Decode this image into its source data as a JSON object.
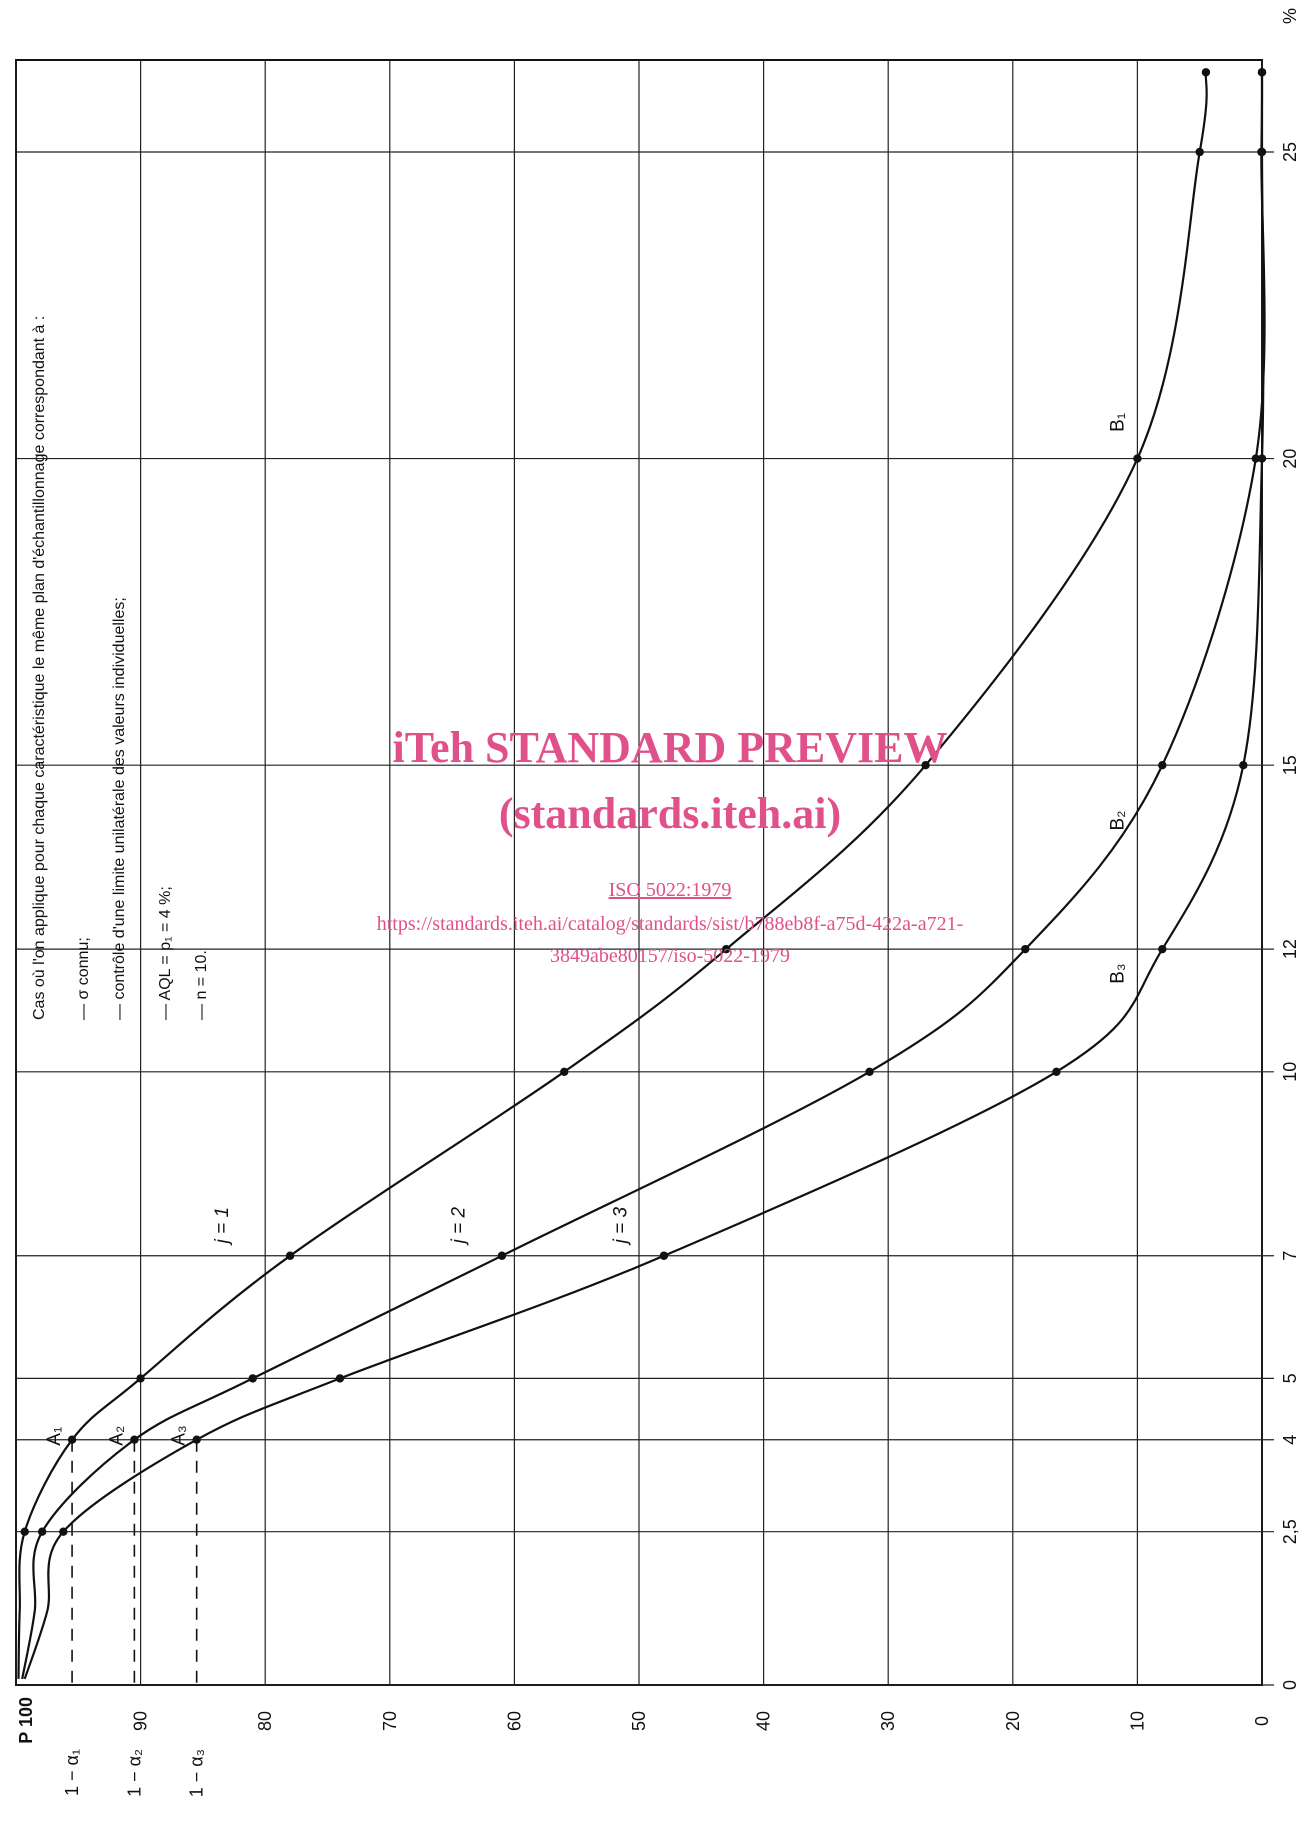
{
  "chart_data": {
    "type": "line",
    "orientation": "rotated-90-clockwise",
    "x_axis": {
      "unit_label": "%",
      "ticks": [
        0,
        2.5,
        4,
        5,
        7,
        10,
        12,
        15,
        20,
        25
      ],
      "tick_labels": [
        "0",
        "2,5",
        "4",
        "5",
        "7",
        "10",
        "12",
        "15",
        "20",
        "25"
      ],
      "range": [
        0,
        26.5
      ]
    },
    "y_axis": {
      "title": "P",
      "ticks": [
        0,
        10,
        20,
        30,
        40,
        50,
        60,
        70,
        80,
        90,
        100
      ],
      "tick_labels": [
        "0",
        "10",
        "20",
        "30",
        "40",
        "50",
        "60",
        "70",
        "80",
        "90",
        "100"
      ],
      "range": [
        0,
        100
      ]
    },
    "alpha_labels": [
      {
        "text": "1 − α₁",
        "value": 95.5
      },
      {
        "text": "1 − α₂",
        "value": 90.5
      },
      {
        "text": "1 − α₃",
        "value": 85.5
      }
    ],
    "series": [
      {
        "label": "j = 1",
        "label_at": [
          7.5,
          83
        ],
        "points": [
          [
            0.1,
            99.8
          ],
          [
            1.2,
            99.7
          ],
          [
            2.5,
            99.3
          ],
          [
            4,
            95.5
          ],
          [
            5,
            90
          ],
          [
            7,
            78
          ],
          [
            10,
            56
          ],
          [
            12,
            43
          ],
          [
            15,
            27
          ],
          [
            20,
            10
          ],
          [
            25,
            5
          ],
          [
            26.3,
            4.5
          ]
        ]
      },
      {
        "label": "j = 2",
        "label_at": [
          7.5,
          64
        ],
        "points": [
          [
            0.1,
            99.5
          ],
          [
            1.2,
            98.5
          ],
          [
            2.5,
            97.9
          ],
          [
            4,
            90.5
          ],
          [
            5,
            81
          ],
          [
            7,
            61
          ],
          [
            10,
            31.5
          ],
          [
            12,
            19
          ],
          [
            15,
            8
          ],
          [
            20,
            0.5
          ],
          [
            25,
            0.05
          ],
          [
            26.3,
            0
          ]
        ]
      },
      {
        "label": "j = 3",
        "label_at": [
          7.5,
          51
        ],
        "points": [
          [
            0.1,
            99.3
          ],
          [
            1.2,
            97.5
          ],
          [
            2.5,
            96.2
          ],
          [
            4,
            85.5
          ],
          [
            5,
            74
          ],
          [
            7,
            48
          ],
          [
            10,
            16.5
          ],
          [
            12,
            8
          ],
          [
            15,
            1.5
          ],
          [
            20,
            0
          ],
          [
            25,
            0
          ],
          [
            26.3,
            0
          ]
        ]
      }
    ],
    "point_labels": [
      {
        "text": "A₁",
        "x": 4,
        "y": 95.5
      },
      {
        "text": "A₂",
        "x": 4,
        "y": 90.5
      },
      {
        "text": "A₃",
        "x": 4,
        "y": 85.5
      },
      {
        "text": "B₁",
        "x": 20.5,
        "y": 10
      },
      {
        "text": "B₂",
        "x": 14,
        "y": 10
      },
      {
        "text": "B₃",
        "x": 11.5,
        "y": 10
      }
    ],
    "legend": {
      "title": "Cas où l'on applique pour chaque caractéristique le même plan d'échantillonnage correspondant à :",
      "items": [
        "—  σ connu;",
        "—  contrôle d'une limite unilatérale des valeurs individuelles;",
        "—  AQL = p₁ = 4 %;",
        "—  n = 10."
      ]
    },
    "grid": true
  },
  "watermark": {
    "line1": "iTeh STANDARD PREVIEW",
    "line2": "(standards.iteh.ai)",
    "line3": "ISO 5022:1979",
    "line4": "https://standards.iteh.ai/catalog/standards/sist/b788eb8f-a75d-422a-a721-",
    "line5": "3849abe80157/iso-5022-1979",
    "color": "#e0508a"
  }
}
